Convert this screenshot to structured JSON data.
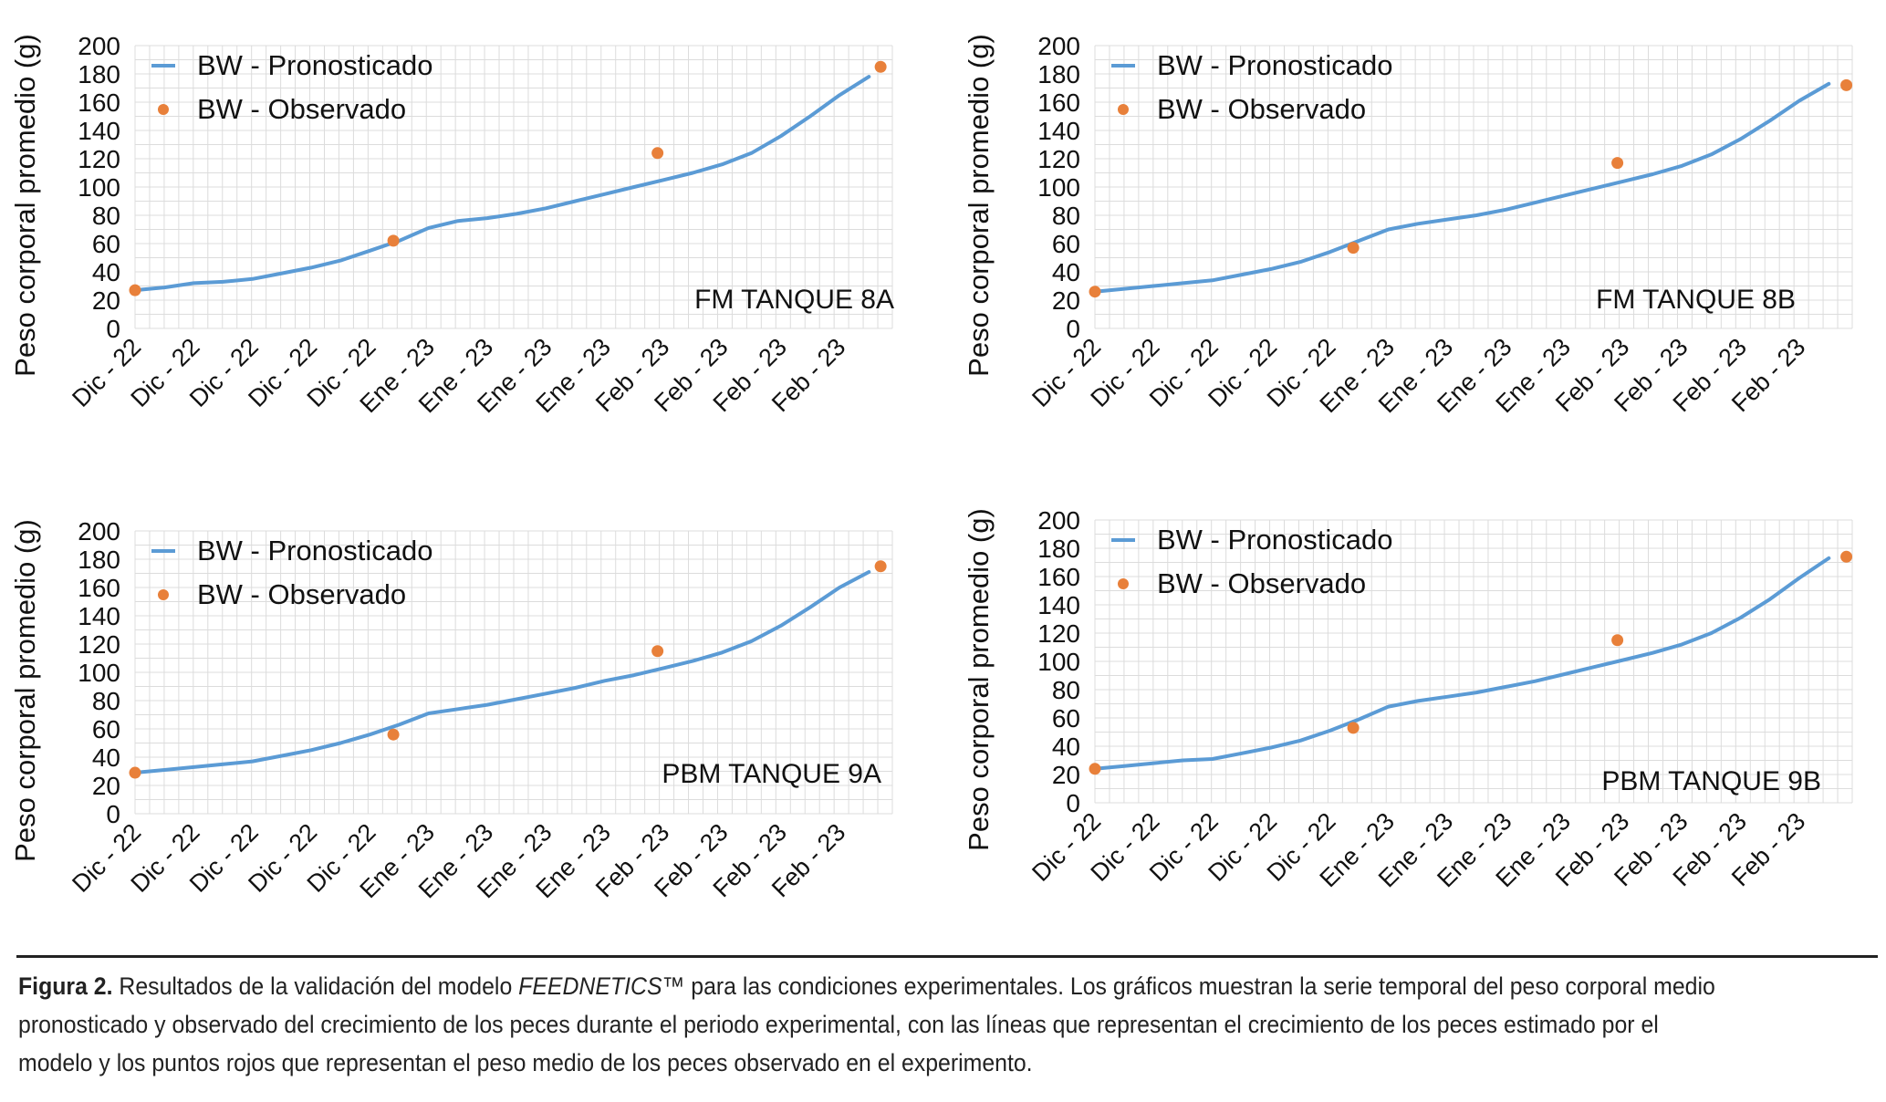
{
  "colors": {
    "forecast": "#5b9bd5",
    "observed": "#e8803a",
    "grid": "#dcdcdc"
  },
  "chart_data": [
    {
      "type": "line",
      "tank_label": "FM TANQUE 8A",
      "ylabel": "Peso corporal promedio (g)",
      "ylim": [
        0,
        200
      ],
      "yticks": [
        "0",
        "20",
        "40",
        "60",
        "80",
        "100",
        "120",
        "140",
        "160",
        "180",
        "200"
      ],
      "xticks": [
        "Dic - 22",
        "Dic - 22",
        "Dic - 22",
        "Dic - 22",
        "Dic - 22",
        "Ene - 23",
        "Ene - 23",
        "Ene - 23",
        "Ene - 23",
        "Feb - 23",
        "Feb - 23",
        "Feb - 23",
        "Feb - 23"
      ],
      "grid": true,
      "legend": "top-left",
      "series": [
        {
          "name": "BW - Pronosticado",
          "kind": "line",
          "x": [
            0,
            0.5,
            1,
            1.5,
            2,
            2.5,
            3,
            3.5,
            4,
            4.5,
            5,
            5.5,
            6,
            6.5,
            7,
            7.5,
            8,
            8.5,
            9,
            9.5,
            10,
            10.5,
            11,
            11.5,
            12,
            12.5
          ],
          "values": [
            27,
            29,
            32,
            33,
            35,
            39,
            43,
            48,
            55,
            62,
            71,
            76,
            78,
            81,
            85,
            90,
            95,
            100,
            105,
            110,
            116,
            124,
            136,
            150,
            165,
            178
          ]
        },
        {
          "name": "BW - Observado",
          "kind": "scatter",
          "x": [
            0,
            4.4,
            8.9,
            12.7
          ],
          "values": [
            27,
            62,
            124,
            185
          ]
        }
      ]
    },
    {
      "type": "line",
      "tank_label": "FM TANQUE 8B",
      "ylabel": "Peso corporal promedio (g)",
      "ylim": [
        0,
        200
      ],
      "yticks": [
        "0",
        "20",
        "40",
        "60",
        "80",
        "100",
        "120",
        "140",
        "160",
        "180",
        "200"
      ],
      "xticks": [
        "Dic - 22",
        "Dic - 22",
        "Dic - 22",
        "Dic - 22",
        "Dic - 22",
        "Ene - 23",
        "Ene - 23",
        "Ene - 23",
        "Ene - 23",
        "Feb - 23",
        "Feb - 23",
        "Feb - 23",
        "Feb - 23"
      ],
      "grid": true,
      "legend": "top-left",
      "series": [
        {
          "name": "BW - Pronosticado",
          "kind": "line",
          "x": [
            0,
            0.5,
            1,
            1.5,
            2,
            2.5,
            3,
            3.5,
            4,
            4.5,
            5,
            5.5,
            6,
            6.5,
            7,
            7.5,
            8,
            8.5,
            9,
            9.5,
            10,
            10.5,
            11,
            11.5,
            12,
            12.5
          ],
          "values": [
            26,
            28,
            30,
            32,
            34,
            38,
            42,
            47,
            54,
            62,
            70,
            74,
            77,
            80,
            84,
            89,
            94,
            99,
            104,
            109,
            115,
            123,
            134,
            147,
            161,
            173
          ]
        },
        {
          "name": "BW - Observado",
          "kind": "scatter",
          "x": [
            0,
            4.4,
            8.9,
            12.8
          ],
          "values": [
            26,
            57,
            117,
            172
          ]
        }
      ]
    },
    {
      "type": "line",
      "tank_label": "PBM TANQUE 9A",
      "ylabel": "Peso corporal promedio (g)",
      "ylim": [
        0,
        200
      ],
      "yticks": [
        "0",
        "20",
        "40",
        "60",
        "80",
        "100",
        "120",
        "140",
        "160",
        "180",
        "200"
      ],
      "xticks": [
        "Dic - 22",
        "Dic - 22",
        "Dic - 22",
        "Dic - 22",
        "Dic - 22",
        "Ene - 23",
        "Ene - 23",
        "Ene - 23",
        "Ene - 23",
        "Feb - 23",
        "Feb - 23",
        "Feb - 23",
        "Feb - 23"
      ],
      "grid": true,
      "legend": "top-left",
      "series": [
        {
          "name": "BW - Pronosticado",
          "kind": "line",
          "x": [
            0,
            0.5,
            1,
            1.5,
            2,
            2.5,
            3,
            3.5,
            4,
            4.5,
            5,
            5.5,
            6,
            6.5,
            7,
            7.5,
            8,
            8.5,
            9,
            9.5,
            10,
            10.5,
            11,
            11.5,
            12,
            12.5
          ],
          "values": [
            29,
            31,
            33,
            35,
            37,
            41,
            45,
            50,
            56,
            63,
            71,
            74,
            77,
            81,
            85,
            89,
            94,
            98,
            103,
            108,
            114,
            122,
            133,
            146,
            160,
            171
          ]
        },
        {
          "name": "BW - Observado",
          "kind": "scatter",
          "x": [
            0,
            4.4,
            8.9,
            12.7
          ],
          "values": [
            29,
            56,
            115,
            175
          ]
        }
      ]
    },
    {
      "type": "line",
      "tank_label": "PBM TANQUE 9B",
      "ylabel": "Peso corporal promedio (g)",
      "ylim": [
        0,
        200
      ],
      "yticks": [
        "0",
        "20",
        "40",
        "60",
        "80",
        "100",
        "120",
        "140",
        "160",
        "180",
        "200"
      ],
      "xticks": [
        "Dic - 22",
        "Dic - 22",
        "Dic - 22",
        "Dic - 22",
        "Dic - 22",
        "Ene - 23",
        "Ene - 23",
        "Ene - 23",
        "Ene - 23",
        "Feb - 23",
        "Feb - 23",
        "Feb - 23",
        "Feb - 23"
      ],
      "grid": true,
      "legend": "top-left",
      "series": [
        {
          "name": "BW - Pronosticado",
          "kind": "line",
          "x": [
            0,
            0.5,
            1,
            1.5,
            2,
            2.5,
            3,
            3.5,
            4,
            4.5,
            5,
            5.5,
            6,
            6.5,
            7,
            7.5,
            8,
            8.5,
            9,
            9.5,
            10,
            10.5,
            11,
            11.5,
            12,
            12.5
          ],
          "values": [
            24,
            26,
            28,
            30,
            31,
            35,
            39,
            44,
            51,
            59,
            68,
            72,
            75,
            78,
            82,
            86,
            91,
            96,
            101,
            106,
            112,
            120,
            131,
            144,
            159,
            173
          ]
        },
        {
          "name": "BW - Observado",
          "kind": "scatter",
          "x": [
            0,
            4.4,
            8.9,
            12.8
          ],
          "values": [
            24,
            53,
            115,
            174
          ]
        }
      ]
    }
  ],
  "caption": {
    "label": "Figura 2.",
    "text_before": " Resultados de la validación del modelo ",
    "model_name": "FEEDNETICS™",
    "text_after": " para las condiciones experimentales. Los gráficos muestran la serie temporal del peso corporal medio pronosticado y observado del crecimiento de los peces durante el periodo experimental, con las líneas que representan el crecimiento de los peces estimado por el modelo y los puntos rojos que representan el peso medio de los peces observado en el experimento."
  }
}
